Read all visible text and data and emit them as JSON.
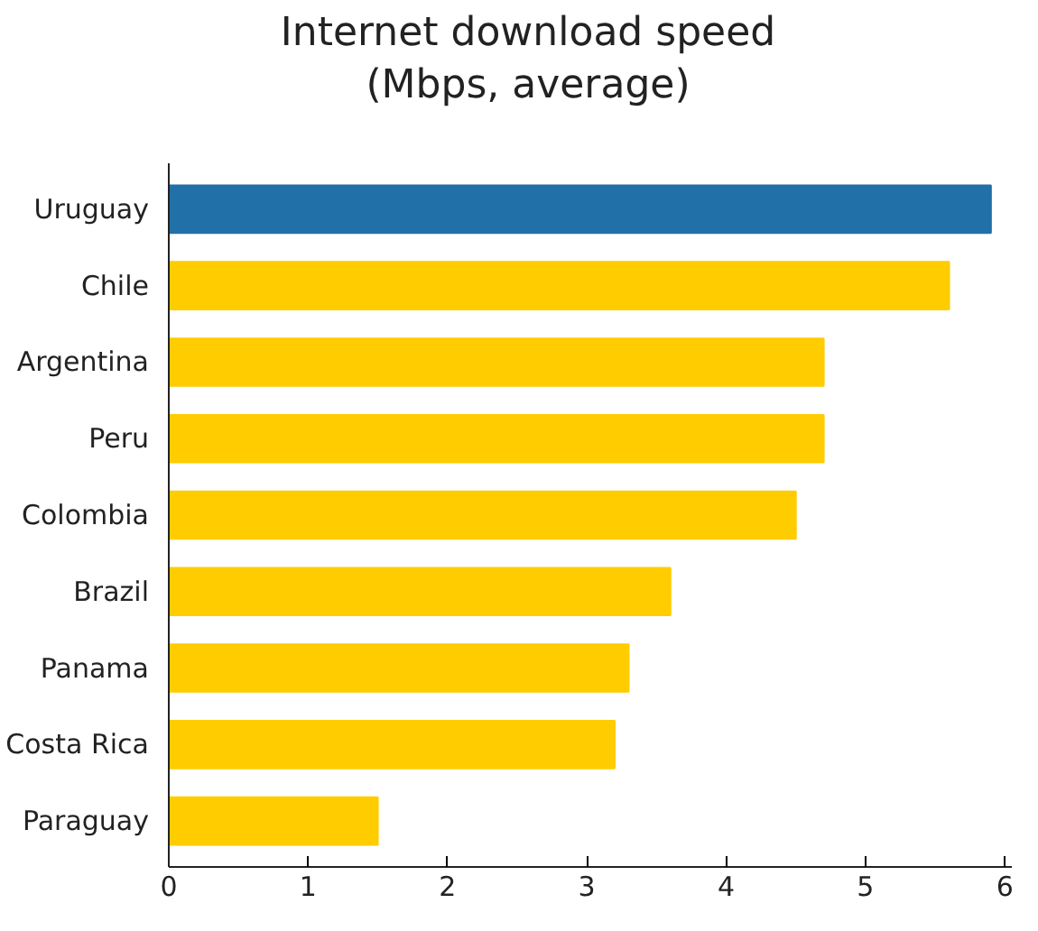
{
  "chart_data": {
    "type": "bar",
    "orientation": "horizontal",
    "title": "Internet download speed\n(Mbps, average)",
    "categories": [
      "Uruguay",
      "Chile",
      "Argentina",
      "Peru",
      "Colombia",
      "Brazil",
      "Panama",
      "Costa Rica",
      "Paraguay"
    ],
    "values": [
      5.9,
      5.6,
      4.7,
      4.7,
      4.5,
      3.6,
      3.3,
      3.2,
      1.5
    ],
    "colors": [
      "#2171a8",
      "#ffcc00",
      "#ffcc00",
      "#ffcc00",
      "#ffcc00",
      "#ffcc00",
      "#ffcc00",
      "#ffcc00",
      "#ffcc00"
    ],
    "xlim": [
      0,
      6.05
    ],
    "xticks": [
      0,
      1,
      2,
      3,
      4,
      5,
      6
    ],
    "grid": false
  }
}
